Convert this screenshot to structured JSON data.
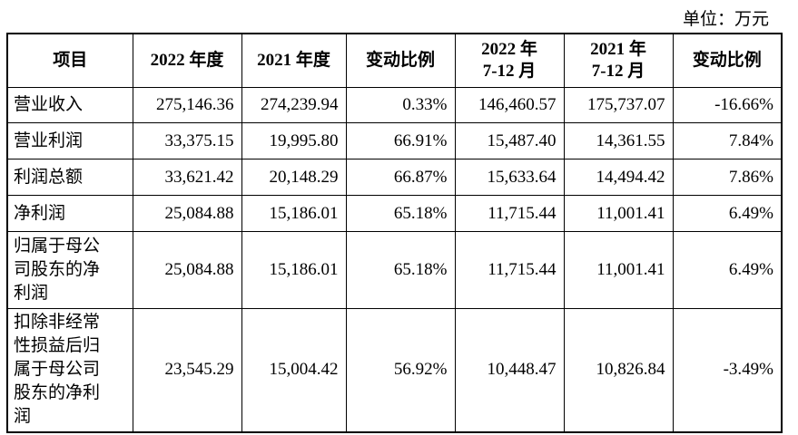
{
  "unit": "单位：万元",
  "table": {
    "header": [
      [
        "项目"
      ],
      [
        "2022 年度"
      ],
      [
        "2021 年度"
      ],
      [
        "变动比例"
      ],
      [
        "2022 年",
        "7-12 月"
      ],
      [
        "2021 年",
        "7-12 月"
      ],
      [
        "变动比例"
      ]
    ],
    "rows": [
      [
        "营业收入",
        "275,146.36",
        "274,239.94",
        "0.33%",
        "146,460.57",
        "175,737.07",
        "-16.66%"
      ],
      [
        "营业利润",
        "33,375.15",
        "19,995.80",
        "66.91%",
        "15,487.40",
        "14,361.55",
        "7.84%"
      ],
      [
        "利润总额",
        "33,621.42",
        "20,148.29",
        "66.87%",
        "15,633.64",
        "14,494.42",
        "7.86%"
      ],
      [
        "净利润",
        "25,084.88",
        "15,186.01",
        "65.18%",
        "11,715.44",
        "11,001.41",
        "6.49%"
      ],
      [
        "归属于母公司股东的净利润",
        "25,084.88",
        "15,186.01",
        "65.18%",
        "11,715.44",
        "11,001.41",
        "6.49%"
      ],
      [
        "扣除非经常性损益后归属于母公司股东的净利润",
        "23,545.29",
        "15,004.42",
        "56.92%",
        "10,448.47",
        "10,826.84",
        "-3.49%"
      ]
    ]
  }
}
